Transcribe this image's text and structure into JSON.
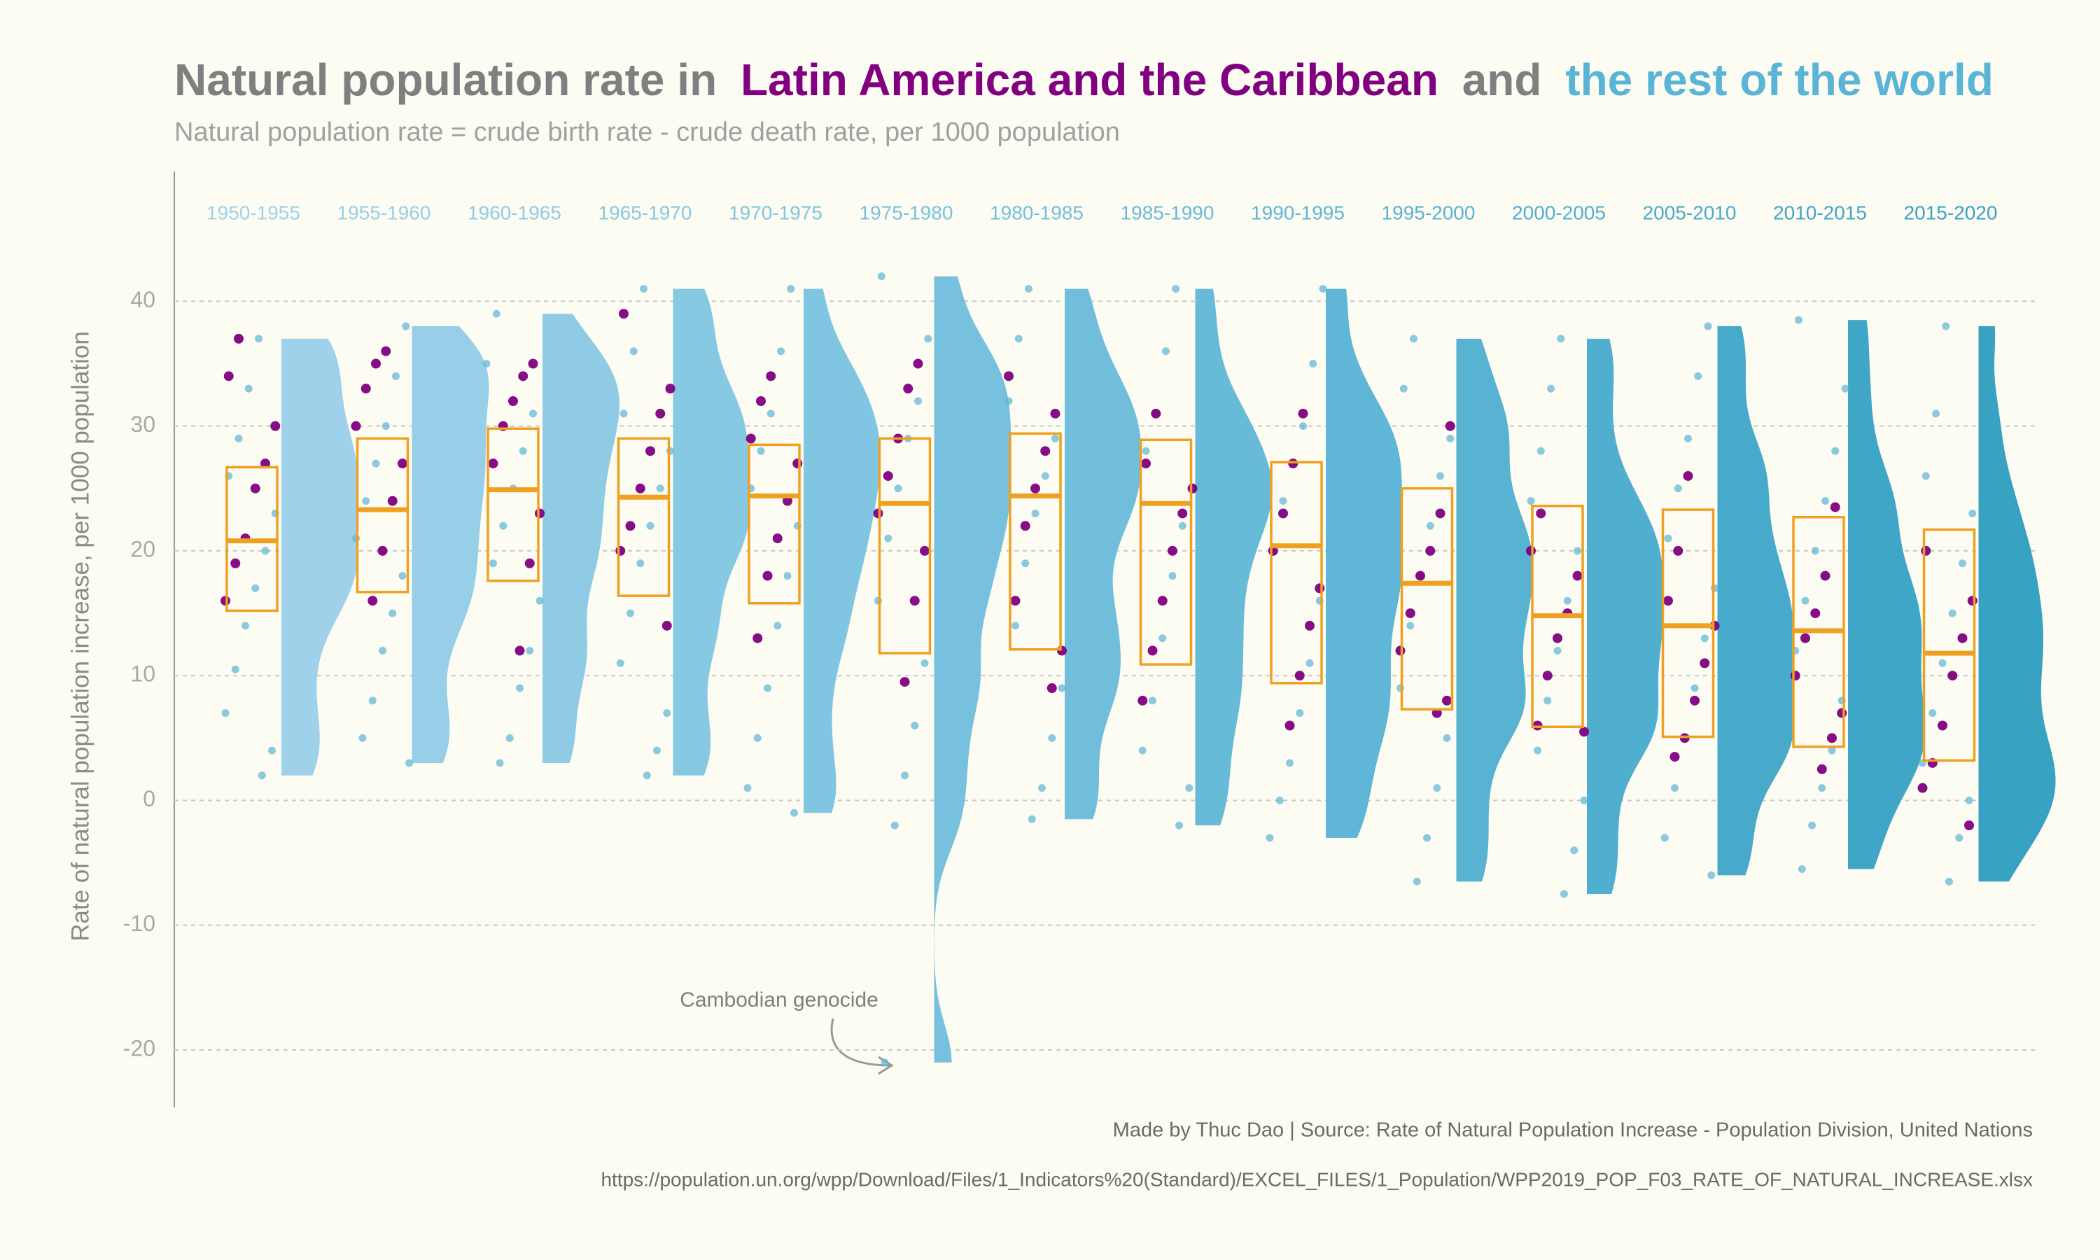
{
  "chart_data": {
    "type": "raincloud",
    "title": [
      "Natural population rate in",
      "and"
    ],
    "subtitle": "Natural population rate = crude birth rate - crude death rate, per 1000 population",
    "y_label": "Rate of natural population increase, per 1000 population",
    "annotation": "Cambodian genocide",
    "caption": "Made by Thuc Dao | Source: Rate of Natural Population Increase - Population Division, United Nations",
    "url": "https://population.un.org/wpp/Download/Files/1_Indicators%20(Standard)/EXCEL_FILES/1_Population/WPP2019_POP_F03_RATE_OF_NATURAL_INCREASE.xlsx",
    "categories": [
      "1950-1955",
      "1955-1960",
      "1960-1965",
      "1965-1970",
      "1970-1975",
      "1975-1980",
      "1980-1985",
      "1985-1990",
      "1990-1995",
      "1995-2000",
      "2000-2005",
      "2005-2010",
      "2010-2015",
      "2015-2020"
    ],
    "category_colors": [
      "#9fd2ea",
      "#97cfe8",
      "#8fcbe5",
      "#87c8e3",
      "#80c5e1",
      "#78c1de",
      "#70bedc",
      "#68bad9",
      "#60b6d6",
      "#58b2d2",
      "#50aecf",
      "#48aacb",
      "#40a6c7",
      "#38a2c3"
    ],
    "box": {
      "color": "#f0a020",
      "q1": [
        15.2,
        16.7,
        17.6,
        16.4,
        15.8,
        11.8,
        12.1,
        10.9,
        9.4,
        7.3,
        5.9,
        5.1,
        4.3,
        3.2
      ],
      "median": [
        20.8,
        23.3,
        24.9,
        24.3,
        24.4,
        23.8,
        24.4,
        23.8,
        20.4,
        17.4,
        14.8,
        14,
        13.6,
        11.8
      ],
      "q3": [
        26.7,
        29,
        29.8,
        29,
        28.5,
        29,
        29.4,
        28.9,
        27.1,
        25,
        23.6,
        23.3,
        22.7,
        21.7
      ]
    },
    "series": [
      {
        "name": "Latin America and the Caribbean",
        "color": "#800080",
        "values": [
          [
            16,
            19,
            21,
            25,
            27,
            30,
            34,
            37
          ],
          [
            16,
            20,
            24,
            27,
            30,
            33,
            35,
            36
          ],
          [
            12,
            19,
            23,
            27,
            30,
            32,
            34,
            35
          ],
          [
            14,
            20,
            22,
            25,
            28,
            31,
            33,
            39
          ],
          [
            13,
            18,
            21,
            24,
            27,
            29,
            32,
            34
          ],
          [
            9.5,
            16,
            20,
            23,
            26,
            29,
            33,
            35
          ],
          [
            9,
            12,
            16,
            22,
            25,
            28,
            31,
            34
          ],
          [
            8,
            12,
            16,
            20,
            23,
            25,
            27,
            31
          ],
          [
            6,
            10,
            14,
            17,
            20,
            23,
            27,
            31
          ],
          [
            7,
            8,
            12,
            15,
            18,
            20,
            23,
            30
          ],
          [
            5.5,
            6,
            10,
            13,
            15,
            18,
            20,
            23
          ],
          [
            3.5,
            5,
            8,
            11,
            14,
            16,
            20,
            26
          ],
          [
            2.5,
            5,
            7,
            10,
            13,
            15,
            18,
            23.5
          ],
          [
            -2,
            1,
            3,
            6,
            10,
            13,
            16,
            20
          ]
        ]
      },
      {
        "name": "the rest of the world",
        "color": "#5ab4d6",
        "values": [
          [
            2,
            4,
            7,
            10.5,
            14,
            17,
            20,
            23,
            26,
            29,
            33,
            37
          ],
          [
            3,
            5,
            8,
            12,
            15,
            18,
            21,
            24,
            27,
            30,
            34,
            38
          ],
          [
            3,
            5,
            9,
            12,
            16,
            19,
            22,
            25,
            28,
            31,
            35,
            39
          ],
          [
            2,
            4,
            7,
            11,
            15,
            19,
            22,
            25,
            28,
            31,
            36,
            41
          ],
          [
            -1,
            1,
            5,
            9,
            14,
            18,
            22,
            25,
            28,
            31,
            36,
            41
          ],
          [
            -21,
            -2,
            2,
            6,
            11,
            16,
            21,
            25,
            29,
            32,
            37,
            42
          ],
          [
            -1.5,
            1,
            5,
            9,
            14,
            19,
            23,
            26,
            29,
            32,
            37,
            41
          ],
          [
            -2,
            1,
            4,
            8,
            13,
            18,
            22,
            25,
            28,
            31,
            36,
            41
          ],
          [
            -3,
            0,
            3,
            7,
            11,
            16,
            20,
            24,
            27,
            30,
            35,
            41
          ],
          [
            -6.5,
            -3,
            1,
            5,
            9,
            14,
            18,
            22,
            26,
            29,
            33,
            37
          ],
          [
            -7.5,
            -4,
            0,
            4,
            8,
            12,
            16,
            20,
            24,
            28,
            33,
            37
          ],
          [
            -6,
            -3,
            1,
            5,
            9,
            13,
            17,
            21,
            25,
            29,
            34,
            38
          ],
          [
            -5.5,
            -2,
            1,
            4,
            8,
            12,
            16,
            20,
            24,
            28,
            33,
            38.5
          ],
          [
            -6.5,
            -3,
            0,
            3,
            7,
            11,
            15,
            19,
            23,
            26,
            31,
            38
          ]
        ]
      }
    ],
    "ylim": [
      -24.6,
      50.4
    ],
    "yticks": [
      -20,
      -10,
      0,
      10,
      20,
      30,
      40
    ],
    "grid": true
  }
}
